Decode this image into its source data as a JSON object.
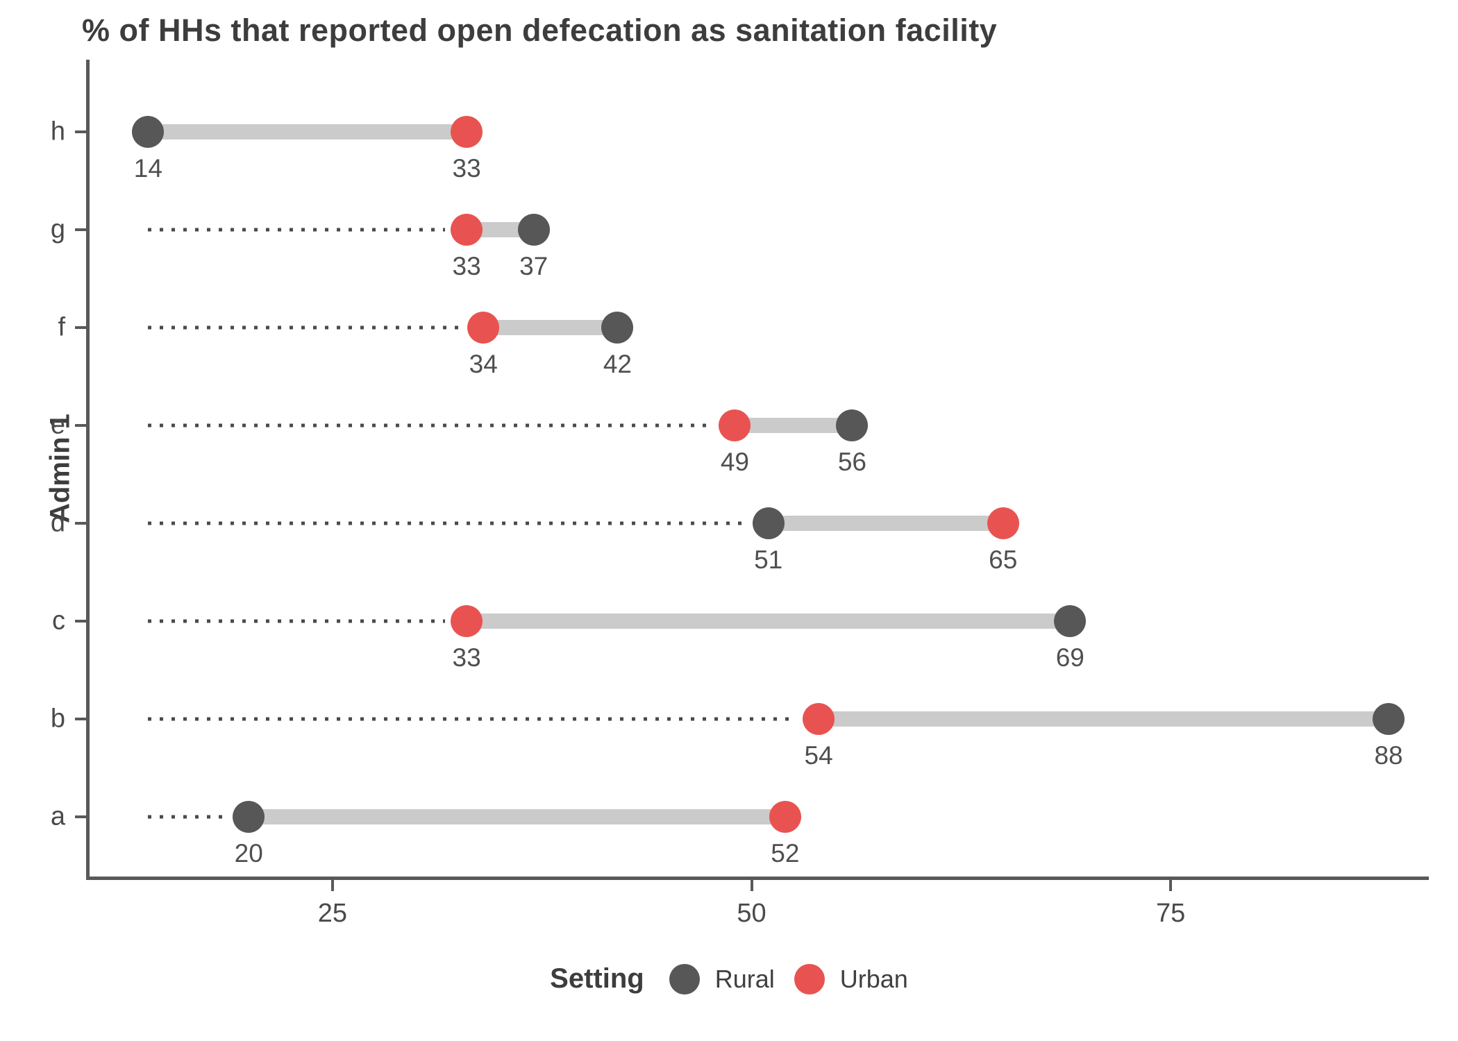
{
  "title": "% of HHs that reported open defecation as sanitation facility",
  "chart_data": {
    "type": "dumbbell",
    "title": "% of HHs that reported open defecation as sanitation facility",
    "xlabel": "",
    "ylabel": "Admin 1",
    "categories": [
      "h",
      "g",
      "f",
      "e",
      "d",
      "c",
      "b",
      "a"
    ],
    "series": [
      {
        "name": "Rural",
        "color": "#575757",
        "values": [
          14,
          37,
          42,
          56,
          51,
          69,
          88,
          20
        ]
      },
      {
        "name": "Urban",
        "color": "#E85351",
        "values": [
          33,
          33,
          34,
          49,
          65,
          33,
          54,
          52
        ]
      }
    ],
    "x_ticks": [
      25,
      50,
      75
    ],
    "x_domain": [
      10.3,
      90.4
    ],
    "grid": "off",
    "legend_position": "bottom",
    "legend_title": "Setting",
    "connector_color": "#cbcbcb",
    "leader_color": "#4a4a4a",
    "axis_color": "#595959",
    "value_labels": "below each dot"
  },
  "legend": {
    "title": "Setting",
    "items": [
      {
        "label": "Rural",
        "color": "#575757"
      },
      {
        "label": "Urban",
        "color": "#E85351"
      }
    ]
  }
}
